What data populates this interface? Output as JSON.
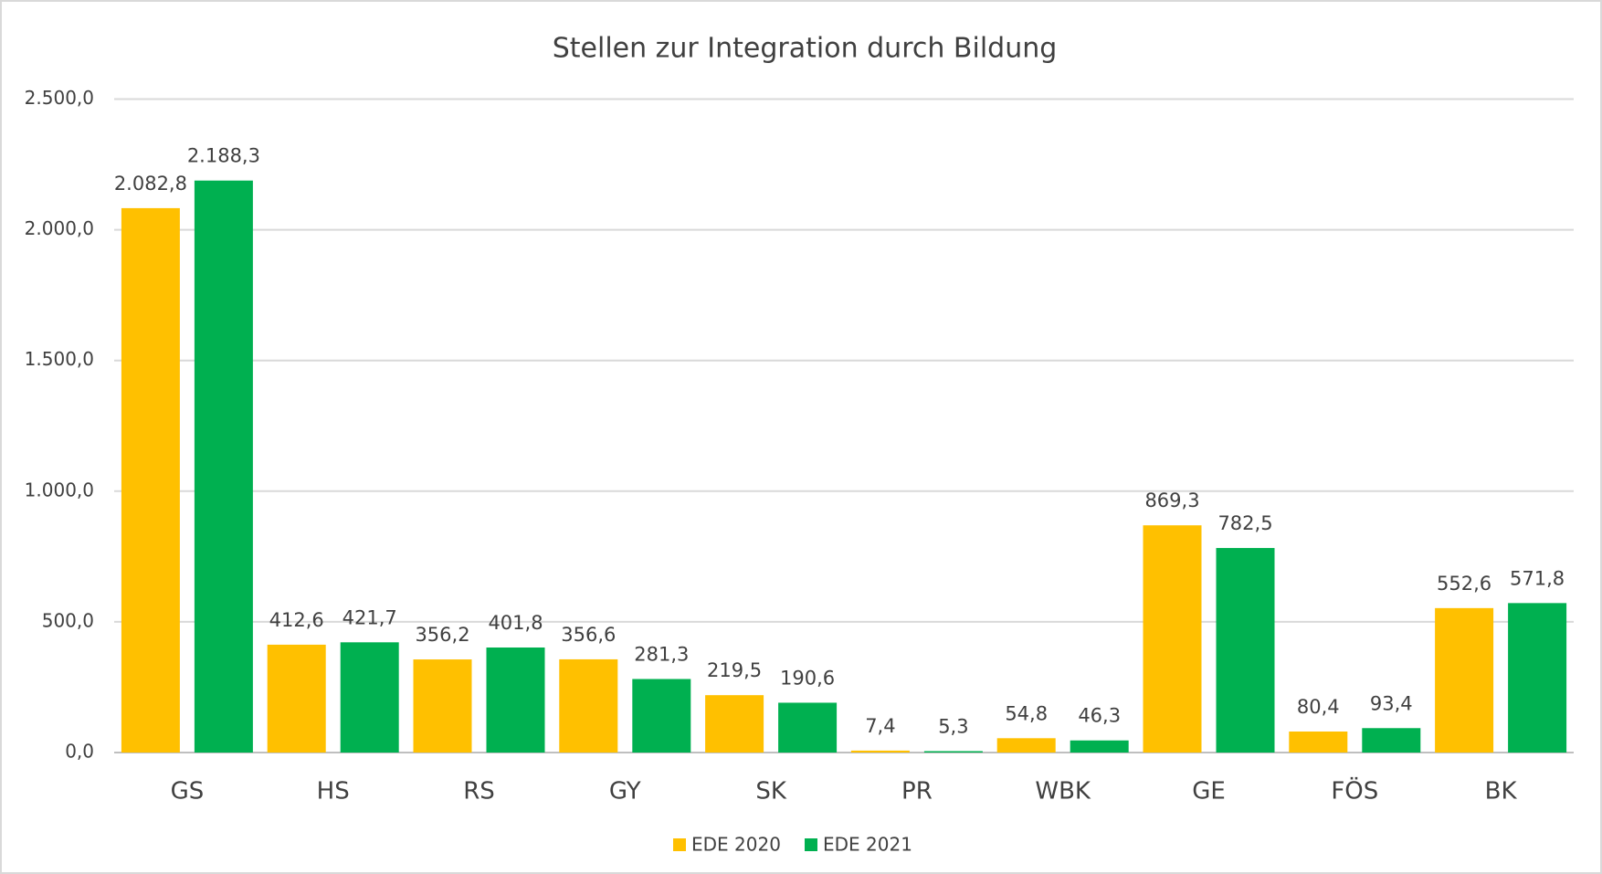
{
  "chart_data": {
    "type": "bar",
    "title": "Stellen zur Integration durch Bildung",
    "categories": [
      "GS",
      "HS",
      "RS",
      "GY",
      "SK",
      "PR",
      "WBK",
      "GE",
      "FÖS",
      "BK"
    ],
    "series": [
      {
        "name": "EDE 2020",
        "color": "#FFC000",
        "values": [
          2082.8,
          412.6,
          356.2,
          356.6,
          219.5,
          7.4,
          54.8,
          869.3,
          80.4,
          552.6
        ],
        "value_labels": [
          "2.082,8",
          "412,6",
          "356,2",
          "356,6",
          "219,5",
          "7,4",
          "54,8",
          "869,3",
          "80,4",
          "552,6"
        ]
      },
      {
        "name": "EDE 2021",
        "color": "#00B050",
        "values": [
          2188.3,
          421.7,
          401.8,
          281.3,
          190.6,
          5.3,
          46.3,
          782.5,
          93.4,
          571.8
        ],
        "value_labels": [
          "2.188,3",
          "421,7",
          "401,8",
          "281,3",
          "190,6",
          "5,3",
          "46,3",
          "782,5",
          "93,4",
          "571,8"
        ]
      }
    ],
    "ylim": [
      0,
      2500
    ],
    "yticks": [
      {
        "value": 0,
        "label": "0,0"
      },
      {
        "value": 500,
        "label": "500,0"
      },
      {
        "value": 1000,
        "label": "1.000,0"
      },
      {
        "value": 1500,
        "label": "1.500,0"
      },
      {
        "value": 2000,
        "label": "2.000,0"
      },
      {
        "value": 2500,
        "label": "2.500,0"
      }
    ],
    "grid": true,
    "legend": "bottom"
  }
}
